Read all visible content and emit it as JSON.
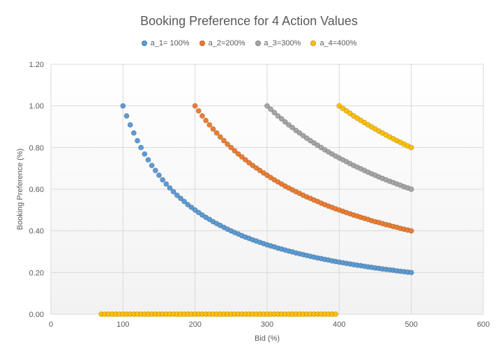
{
  "chart_data": {
    "type": "scatter",
    "title": "Booking Preference for 4 Action Values",
    "xlabel": "Bid (%)",
    "ylabel": "Booking Preference (%)",
    "xlim": [
      0,
      600
    ],
    "ylim": [
      0,
      1.2
    ],
    "x_ticks": [
      "0",
      "100",
      "200",
      "300",
      "400",
      "500",
      "600"
    ],
    "y_ticks": [
      "0.00",
      "0.20",
      "0.40",
      "0.60",
      "0.80",
      "1.00",
      "1.20"
    ],
    "grid": true,
    "legend_position": "top",
    "series": [
      {
        "name": "a_1= 100%",
        "color": "#5B9BD5",
        "x": [
          100,
          105,
          110,
          115,
          120,
          125,
          130,
          135,
          140,
          145,
          150,
          155,
          160,
          165,
          170,
          175,
          180,
          185,
          190,
          195,
          200,
          205,
          210,
          215,
          220,
          225,
          230,
          235,
          240,
          245,
          250,
          255,
          260,
          265,
          270,
          275,
          280,
          285,
          290,
          295,
          300,
          305,
          310,
          315,
          320,
          325,
          330,
          335,
          340,
          345,
          350,
          355,
          360,
          365,
          370,
          375,
          380,
          385,
          390,
          395,
          400,
          405,
          410,
          415,
          420,
          425,
          430,
          435,
          440,
          445,
          450,
          455,
          460,
          465,
          470,
          475,
          480,
          485,
          490,
          495,
          500
        ],
        "y": [
          1.0,
          0.952,
          0.909,
          0.87,
          0.833,
          0.8,
          0.769,
          0.741,
          0.714,
          0.69,
          0.667,
          0.645,
          0.625,
          0.606,
          0.588,
          0.571,
          0.556,
          0.541,
          0.526,
          0.513,
          0.5,
          0.488,
          0.476,
          0.465,
          0.455,
          0.444,
          0.435,
          0.426,
          0.417,
          0.408,
          0.4,
          0.392,
          0.385,
          0.377,
          0.37,
          0.364,
          0.357,
          0.351,
          0.345,
          0.339,
          0.333,
          0.328,
          0.323,
          0.317,
          0.313,
          0.308,
          0.303,
          0.299,
          0.294,
          0.29,
          0.286,
          0.282,
          0.278,
          0.274,
          0.27,
          0.267,
          0.263,
          0.26,
          0.256,
          0.253,
          0.25,
          0.247,
          0.244,
          0.241,
          0.238,
          0.235,
          0.233,
          0.23,
          0.227,
          0.225,
          0.222,
          0.22,
          0.217,
          0.215,
          0.213,
          0.211,
          0.208,
          0.206,
          0.204,
          0.202,
          0.2
        ]
      },
      {
        "name": "a_2=200%",
        "color": "#ED7D31",
        "x": [
          200,
          205,
          210,
          215,
          220,
          225,
          230,
          235,
          240,
          245,
          250,
          255,
          260,
          265,
          270,
          275,
          280,
          285,
          290,
          295,
          300,
          305,
          310,
          315,
          320,
          325,
          330,
          335,
          340,
          345,
          350,
          355,
          360,
          365,
          370,
          375,
          380,
          385,
          390,
          395,
          400,
          405,
          410,
          415,
          420,
          425,
          430,
          435,
          440,
          445,
          450,
          455,
          460,
          465,
          470,
          475,
          480,
          485,
          490,
          495,
          500
        ],
        "y": [
          1.0,
          0.976,
          0.952,
          0.93,
          0.909,
          0.889,
          0.87,
          0.851,
          0.833,
          0.816,
          0.8,
          0.784,
          0.769,
          0.755,
          0.741,
          0.727,
          0.714,
          0.702,
          0.69,
          0.678,
          0.667,
          0.656,
          0.645,
          0.635,
          0.625,
          0.615,
          0.606,
          0.597,
          0.588,
          0.58,
          0.571,
          0.563,
          0.556,
          0.548,
          0.541,
          0.533,
          0.526,
          0.519,
          0.513,
          0.506,
          0.5,
          0.494,
          0.488,
          0.482,
          0.476,
          0.471,
          0.465,
          0.46,
          0.455,
          0.449,
          0.444,
          0.44,
          0.435,
          0.43,
          0.426,
          0.421,
          0.417,
          0.412,
          0.408,
          0.404,
          0.4
        ]
      },
      {
        "name": "a_3=300%",
        "color": "#A5A5A5",
        "x": [
          300,
          305,
          310,
          315,
          320,
          325,
          330,
          335,
          340,
          345,
          350,
          355,
          360,
          365,
          370,
          375,
          380,
          385,
          390,
          395,
          400,
          405,
          410,
          415,
          420,
          425,
          430,
          435,
          440,
          445,
          450,
          455,
          460,
          465,
          470,
          475,
          480,
          485,
          490,
          495,
          500
        ],
        "y": [
          1.0,
          0.984,
          0.968,
          0.952,
          0.938,
          0.923,
          0.909,
          0.896,
          0.882,
          0.87,
          0.857,
          0.845,
          0.833,
          0.822,
          0.811,
          0.8,
          0.789,
          0.779,
          0.769,
          0.759,
          0.75,
          0.741,
          0.732,
          0.723,
          0.714,
          0.706,
          0.698,
          0.69,
          0.682,
          0.674,
          0.667,
          0.659,
          0.652,
          0.645,
          0.638,
          0.632,
          0.625,
          0.619,
          0.612,
          0.606,
          0.6
        ]
      },
      {
        "name": "a_4=400%",
        "color": "#FFC000",
        "x": [
          400,
          405,
          410,
          415,
          420,
          425,
          430,
          435,
          440,
          445,
          450,
          455,
          460,
          465,
          470,
          475,
          480,
          485,
          490,
          495,
          500,
          70,
          75,
          80,
          85,
          90,
          95,
          100,
          105,
          110,
          115,
          120,
          125,
          130,
          135,
          140,
          145,
          150,
          155,
          160,
          165,
          170,
          175,
          180,
          185,
          190,
          195,
          200,
          205,
          210,
          215,
          220,
          225,
          230,
          235,
          240,
          245,
          250,
          255,
          260,
          265,
          270,
          275,
          280,
          285,
          290,
          295,
          300,
          305,
          310,
          315,
          320,
          325,
          330,
          335,
          340,
          345,
          350,
          355,
          360,
          365,
          370,
          375,
          380,
          385,
          390,
          395
        ],
        "y": [
          1.0,
          0.988,
          0.976,
          0.964,
          0.952,
          0.941,
          0.93,
          0.92,
          0.909,
          0.899,
          0.889,
          0.879,
          0.87,
          0.86,
          0.851,
          0.842,
          0.833,
          0.825,
          0.816,
          0.808,
          0.8,
          0,
          0,
          0,
          0,
          0,
          0,
          0,
          0,
          0,
          0,
          0,
          0,
          0,
          0,
          0,
          0,
          0,
          0,
          0,
          0,
          0,
          0,
          0,
          0,
          0,
          0,
          0,
          0,
          0,
          0,
          0,
          0,
          0,
          0,
          0,
          0,
          0,
          0,
          0,
          0,
          0,
          0,
          0,
          0,
          0,
          0,
          0,
          0,
          0,
          0,
          0,
          0,
          0,
          0,
          0,
          0,
          0,
          0,
          0,
          0,
          0,
          0,
          0,
          0,
          0,
          0
        ]
      }
    ]
  }
}
